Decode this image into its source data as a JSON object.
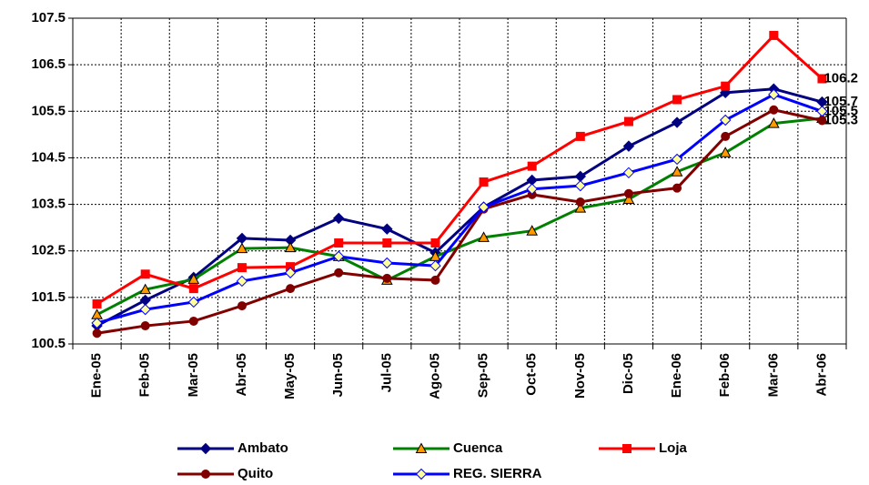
{
  "chart_data": {
    "type": "line",
    "categories": [
      "Ene-05",
      "Feb-05",
      "Mar-05",
      "Abr-05",
      "May-05",
      "Jun-05",
      "Jul-05",
      "Ago-05",
      "Sep-05",
      "Oct-05",
      "Nov-05",
      "Dic-05",
      "Ene-06",
      "Feb-06",
      "Mar-06",
      "Abr-06"
    ],
    "ylim": [
      100.5,
      107.5
    ],
    "yticks": [
      100.5,
      101.5,
      102.5,
      103.5,
      104.5,
      105.5,
      106.5,
      107.5
    ],
    "grid": true,
    "legend": "bottom",
    "series": [
      {
        "name": "Ambato",
        "color": "#000080",
        "marker": "diamond",
        "marker_color": "#000080",
        "values": [
          100.89,
          101.44,
          101.93,
          102.77,
          102.73,
          103.2,
          102.97,
          102.46,
          103.44,
          104.02,
          104.1,
          104.75,
          105.26,
          105.9,
          105.98,
          105.7
        ],
        "value_labels": [
          null,
          null,
          null,
          null,
          null,
          null,
          null,
          null,
          null,
          null,
          null,
          null,
          null,
          null,
          null,
          "105.7"
        ]
      },
      {
        "name": "Cuenca",
        "color": "#008000",
        "marker": "triangle",
        "marker_color": "#ff9900",
        "values": [
          101.13,
          101.67,
          101.89,
          102.55,
          102.57,
          102.38,
          101.87,
          102.38,
          102.79,
          102.93,
          103.42,
          103.61,
          104.2,
          104.61,
          105.24,
          105.35
        ]
      },
      {
        "name": "Loja",
        "color": "#ff0000",
        "marker": "square",
        "marker_color": "#ff0000",
        "values": [
          101.36,
          102.0,
          101.69,
          102.14,
          102.16,
          102.67,
          102.67,
          102.67,
          103.98,
          104.32,
          104.96,
          105.28,
          105.75,
          106.04,
          107.13,
          106.2
        ],
        "value_labels": [
          null,
          null,
          null,
          null,
          null,
          null,
          null,
          null,
          null,
          null,
          null,
          null,
          null,
          null,
          null,
          "106.2"
        ]
      },
      {
        "name": "Quito",
        "color": "#800000",
        "marker": "circle",
        "marker_color": "#800000",
        "values": [
          100.73,
          100.89,
          100.99,
          101.32,
          101.69,
          102.03,
          101.91,
          101.87,
          103.4,
          103.71,
          103.55,
          103.73,
          103.85,
          104.96,
          105.53,
          105.3
        ],
        "value_labels": [
          null,
          null,
          null,
          null,
          null,
          null,
          null,
          null,
          null,
          null,
          null,
          null,
          null,
          null,
          null,
          "105.3"
        ]
      },
      {
        "name": "REG. SIERRA",
        "color": "#0000ff",
        "marker": "diamond",
        "marker_color": "#ffff99",
        "values": [
          100.95,
          101.24,
          101.4,
          101.85,
          102.03,
          102.38,
          102.24,
          102.18,
          103.44,
          103.83,
          103.9,
          104.18,
          104.47,
          105.31,
          105.86,
          105.5
        ],
        "value_labels": [
          null,
          null,
          null,
          null,
          null,
          null,
          null,
          null,
          null,
          null,
          null,
          null,
          null,
          null,
          null,
          "105.5"
        ]
      }
    ]
  }
}
